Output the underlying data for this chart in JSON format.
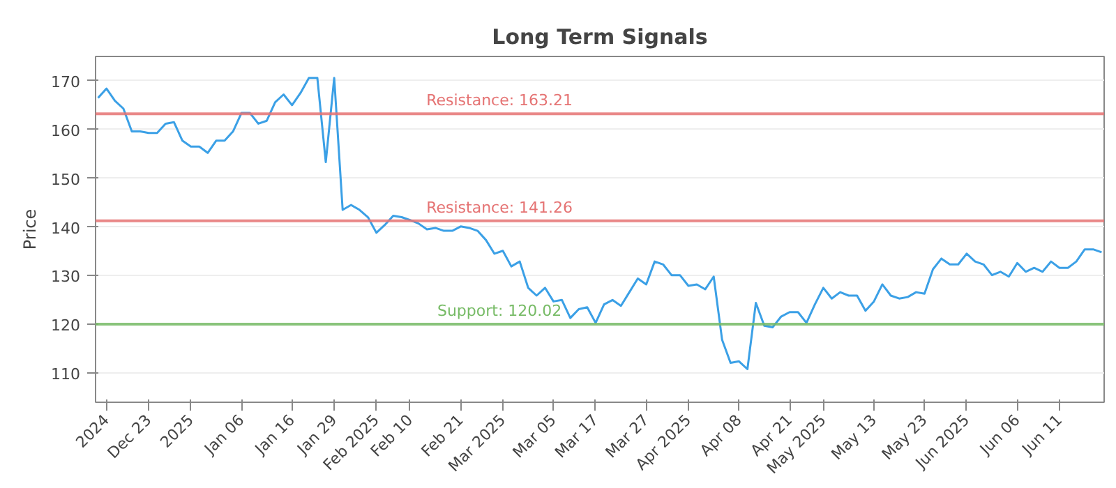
{
  "chart_data": {
    "type": "line",
    "title": "Long Term Signals",
    "ylabel": "Price",
    "categories": [
      null,
      "2024",
      null,
      null,
      null,
      null,
      "Dec 23",
      null,
      null,
      null,
      null,
      "2025",
      null,
      null,
      null,
      null,
      null,
      "Jan 06",
      null,
      null,
      null,
      null,
      null,
      "Jan 16",
      null,
      null,
      null,
      null,
      "Jan 29",
      null,
      null,
      null,
      null,
      "Feb 2025",
      null,
      null,
      null,
      "Feb 10",
      null,
      null,
      null,
      null,
      null,
      "Feb 21",
      null,
      null,
      null,
      null,
      "Mar 2025",
      null,
      null,
      null,
      null,
      null,
      "Mar 05",
      null,
      null,
      null,
      null,
      "Mar 17",
      null,
      null,
      null,
      null,
      null,
      "Mar 27",
      null,
      null,
      null,
      null,
      "Apr 2025",
      null,
      null,
      null,
      null,
      null,
      "Apr 08",
      null,
      null,
      null,
      null,
      null,
      "Apr 21",
      null,
      null,
      null,
      "May 2025",
      null,
      null,
      null,
      null,
      null,
      "May 13",
      null,
      null,
      null,
      null,
      null,
      "May 23",
      null,
      null,
      null,
      null,
      "Jun 2025",
      null,
      null,
      null,
      null,
      null,
      "Jun 06",
      null,
      null,
      null,
      null,
      "Jun 11",
      null,
      null,
      null,
      null,
      null
    ],
    "series": [
      {
        "color": "#3ba0e6",
        "values": [
          166.5,
          168.4,
          165.9,
          164.3,
          159.6,
          159.6,
          159.3,
          159.3,
          161.2,
          161.5,
          157.7,
          156.5,
          156.5,
          155.2,
          157.7,
          157.7,
          159.6,
          163.4,
          163.4,
          161.2,
          161.8,
          165.6,
          167.2,
          165,
          167.5,
          170.6,
          170.6,
          153.3,
          170.6,
          143.5,
          144.5,
          143.5,
          142,
          138.8,
          140.4,
          142.3,
          142,
          141.4,
          140.7,
          139.5,
          139.8,
          139.2,
          139.2,
          140.1,
          139.8,
          139.2,
          137.3,
          134.5,
          135.1,
          131.9,
          132.9,
          127.5,
          125.9,
          127.5,
          124.7,
          125,
          121.3,
          123.1,
          123.5,
          120.3,
          124.1,
          125,
          123.8,
          126.6,
          129.4,
          128.2,
          132.9,
          132.3,
          130.1,
          130.1,
          127.9,
          128.2,
          127.2,
          129.8,
          116.8,
          112.1,
          112.4,
          110.8,
          124.4,
          119.7,
          119.4,
          121.6,
          122.5,
          122.5,
          120.3,
          124.1,
          127.5,
          125.3,
          126.6,
          125.9,
          125.9,
          122.8,
          124.7,
          128.2,
          125.9,
          125.3,
          125.6,
          126.6,
          126.3,
          131.3,
          133.5,
          132.3,
          132.3,
          134.5,
          132.9,
          132.3,
          130.1,
          130.8,
          129.8,
          132.6,
          130.8,
          131.6,
          130.8,
          132.9,
          131.6,
          131.6,
          132.9,
          135.4,
          135.4,
          134.8
        ]
      }
    ],
    "ylim": [
      104,
      175
    ],
    "yticks": [
      110,
      120,
      130,
      140,
      150,
      160,
      170
    ],
    "grid": "y",
    "marker": "none",
    "line_style": "solid",
    "ref_lines": [
      {
        "axis": "y",
        "value": 163.21,
        "label": "Resistance: 163.21",
        "color": "#e57373"
      },
      {
        "axis": "y",
        "value": 141.26,
        "label": "Resistance: 141.26",
        "color": "#e57373"
      },
      {
        "axis": "y",
        "value": 120.02,
        "label": "Support: 120.02",
        "color": "#77bb66"
      }
    ]
  }
}
